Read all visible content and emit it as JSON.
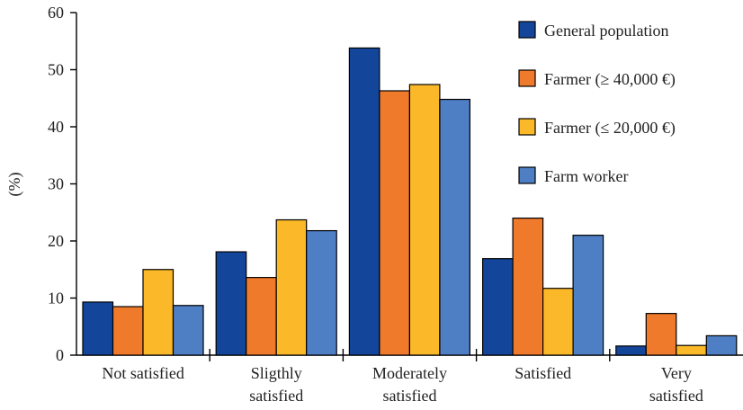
{
  "chart_data": {
    "type": "bar",
    "title": "",
    "xlabel": "",
    "ylabel": "(%)",
    "ylim": [
      0,
      60
    ],
    "yticks": [
      0,
      10,
      20,
      30,
      40,
      50,
      60
    ],
    "grid": false,
    "legend_position": "top-right",
    "categories": [
      [
        "Not satisfied"
      ],
      [
        "Sligthly",
        "satisfied"
      ],
      [
        "Moderately",
        "satisfied"
      ],
      [
        "Satisfied"
      ],
      [
        "Very",
        "satisfied"
      ]
    ],
    "series": [
      {
        "name": "General population",
        "color": "#13469a",
        "values": [
          9.3,
          18.1,
          53.8,
          16.9,
          1.6
        ]
      },
      {
        "name": "Farmer (≥ 40,000 €)",
        "color": "#f07a2c",
        "values": [
          8.5,
          13.6,
          46.3,
          24.0,
          7.3
        ]
      },
      {
        "name": "Farmer (≤ 20,000 €)",
        "color": "#fbb929",
        "values": [
          15.0,
          23.7,
          47.4,
          11.7,
          1.7
        ]
      },
      {
        "name": "Farm worker",
        "color": "#4e7ec3",
        "values": [
          8.7,
          21.8,
          44.8,
          21.0,
          3.4
        ]
      }
    ]
  }
}
